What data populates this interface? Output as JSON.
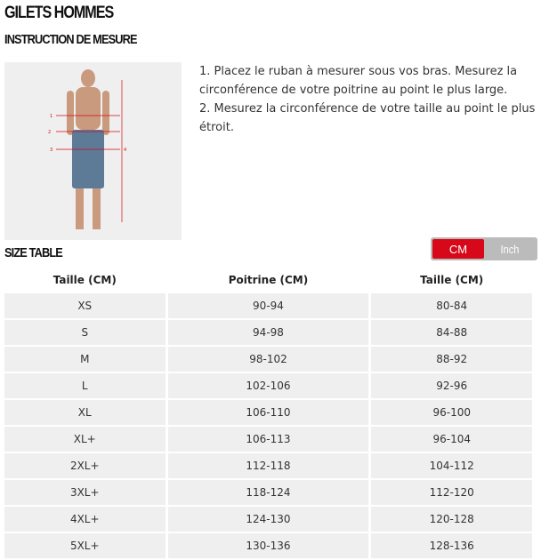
{
  "title": "GILETS HOMMES",
  "instruction_heading": "INSTRUCTION DE MESURE",
  "instructions": [
    "1. Placez le ruban à mesurer sous vos bras. Mesurez la circonférence de votre poitrine au point le plus large.",
    "2. Mesurez la circonférence de votre taille au point le plus étroit."
  ],
  "figure_labels": [
    "1",
    "2",
    "3",
    "4"
  ],
  "size_table_heading": "SIZE TABLE",
  "unit_toggle": {
    "options": [
      "CM",
      "Inch"
    ],
    "selected": "CM",
    "accent": "#d6081a"
  },
  "table": {
    "headers": [
      "Taille (CM)",
      "Poitrine (CM)",
      "Taille (CM)"
    ],
    "rows": [
      [
        "XS",
        "90-94",
        "80-84"
      ],
      [
        "S",
        "94-98",
        "84-88"
      ],
      [
        "M",
        "98-102",
        "88-92"
      ],
      [
        "L",
        "102-106",
        "92-96"
      ],
      [
        "XL",
        "106-110",
        "96-100"
      ],
      [
        "XL+",
        "106-113",
        "96-104"
      ],
      [
        "2XL+",
        "112-118",
        "104-112"
      ],
      [
        "3XL+",
        "118-124",
        "112-120"
      ],
      [
        "4XL+",
        "124-130",
        "120-128"
      ],
      [
        "5XL+",
        "130-136",
        "128-136"
      ]
    ]
  }
}
